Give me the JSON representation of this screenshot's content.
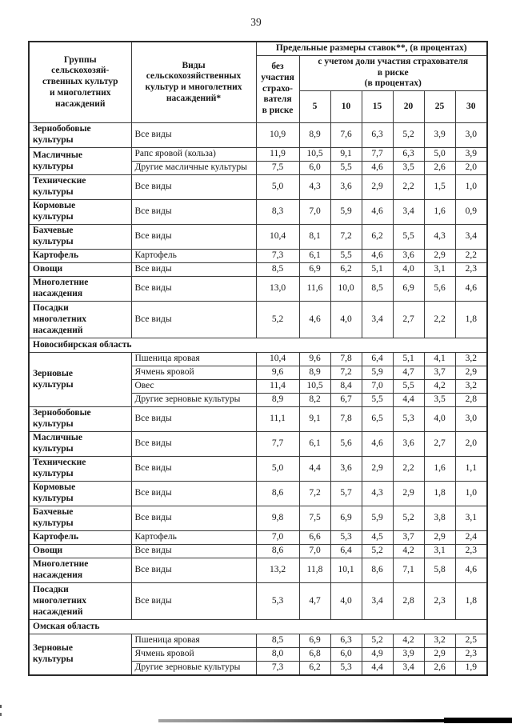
{
  "page": {
    "number": "39"
  },
  "table": {
    "header": {
      "groups": "Группы\nсельскохозяй-\nственных культур\nи многолетних\nнасаждений",
      "kinds": "Виды\nсельскохозяйственных\nкультур и многолетних\nнасаждений*",
      "rates_title": "Предельные размеры ставок**,  (в процентах)",
      "no_participation": "без\nучастия\nстрахо-\nвателя\nв риске",
      "with_participation": "с учетом доли участия страхователя\nв риске\n(в процентах)",
      "percentages": [
        "5",
        "10",
        "15",
        "20",
        "25",
        "30"
      ]
    },
    "sections": [
      {
        "region": null,
        "groups": [
          {
            "name": "Зернобобовые\nкультуры",
            "rows": [
              {
                "kind": "Все виды",
                "values": [
                  "10,9",
                  "8,9",
                  "7,6",
                  "6,3",
                  "5,2",
                  "3,9",
                  "3,0"
                ]
              }
            ]
          },
          {
            "name": "Масличные\nкультуры",
            "rows": [
              {
                "kind": "Рапс яровой (кольза)",
                "values": [
                  "11,9",
                  "10,5",
                  "9,1",
                  "7,7",
                  "6,3",
                  "5,0",
                  "3,9"
                ]
              },
              {
                "kind": "Другие масличные культуры",
                "values": [
                  "7,5",
                  "6,0",
                  "5,5",
                  "4,6",
                  "3,5",
                  "2,6",
                  "2,0"
                ]
              }
            ]
          },
          {
            "name": "Технические\nкультуры",
            "rows": [
              {
                "kind": "Все виды",
                "values": [
                  "5,0",
                  "4,3",
                  "3,6",
                  "2,9",
                  "2,2",
                  "1,5",
                  "1,0"
                ]
              }
            ]
          },
          {
            "name": "Кормовые\nкультуры",
            "rows": [
              {
                "kind": "Все виды",
                "values": [
                  "8,3",
                  "7,0",
                  "5,9",
                  "4,6",
                  "3,4",
                  "1,6",
                  "0,9"
                ]
              }
            ]
          },
          {
            "name": "Бахчевые\nкультуры",
            "rows": [
              {
                "kind": "Все виды",
                "values": [
                  "10,4",
                  "8,1",
                  "7,2",
                  "6,2",
                  "5,5",
                  "4,3",
                  "3,4"
                ]
              }
            ]
          },
          {
            "name": "Картофель",
            "rows": [
              {
                "kind": "Картофель",
                "values": [
                  "7,3",
                  "6,1",
                  "5,5",
                  "4,6",
                  "3,6",
                  "2,9",
                  "2,2"
                ]
              }
            ]
          },
          {
            "name": "Овощи",
            "rows": [
              {
                "kind": "Все виды",
                "values": [
                  "8,5",
                  "6,9",
                  "6,2",
                  "5,1",
                  "4,0",
                  "3,1",
                  "2,3"
                ]
              }
            ]
          },
          {
            "name": "Многолетние\nнасаждения",
            "rows": [
              {
                "kind": "Все виды",
                "values": [
                  "13,0",
                  "11,6",
                  "10,0",
                  "8,5",
                  "6,9",
                  "5,6",
                  "4,6"
                ]
              }
            ]
          },
          {
            "name": "Посадки\nмноголетних\nнасаждений",
            "rows": [
              {
                "kind": "Все виды",
                "values": [
                  "5,2",
                  "4,6",
                  "4,0",
                  "3,4",
                  "2,7",
                  "2,2",
                  "1,8"
                ]
              }
            ]
          }
        ]
      },
      {
        "region": "Новосибирская область",
        "groups": [
          {
            "name": "Зерновые\nкультуры",
            "rows": [
              {
                "kind": "Пшеница яровая",
                "values": [
                  "10,4",
                  "9,6",
                  "7,8",
                  "6,4",
                  "5,1",
                  "4,1",
                  "3,2"
                ]
              },
              {
                "kind": "Ячмень яровой",
                "values": [
                  "9,6",
                  "8,9",
                  "7,2",
                  "5,9",
                  "4,7",
                  "3,7",
                  "2,9"
                ]
              },
              {
                "kind": "Овес",
                "values": [
                  "11,4",
                  "10,5",
                  "8,4",
                  "7,0",
                  "5,5",
                  "4,2",
                  "3,2"
                ]
              },
              {
                "kind": "Другие зерновые культуры",
                "values": [
                  "8,9",
                  "8,2",
                  "6,7",
                  "5,5",
                  "4,4",
                  "3,5",
                  "2,8"
                ]
              }
            ]
          },
          {
            "name": "Зернобобовые\nкультуры",
            "rows": [
              {
                "kind": "Все виды",
                "values": [
                  "11,1",
                  "9,1",
                  "7,8",
                  "6,5",
                  "5,3",
                  "4,0",
                  "3,0"
                ]
              }
            ]
          },
          {
            "name": "Масличные\nкультуры",
            "rows": [
              {
                "kind": "Все виды",
                "values": [
                  "7,7",
                  "6,1",
                  "5,6",
                  "4,6",
                  "3,6",
                  "2,7",
                  "2,0"
                ]
              }
            ]
          },
          {
            "name": "Технические\nкультуры",
            "rows": [
              {
                "kind": "Все виды",
                "values": [
                  "5,0",
                  "4,4",
                  "3,6",
                  "2,9",
                  "2,2",
                  "1,6",
                  "1,1"
                ]
              }
            ]
          },
          {
            "name": "Кормовые\nкультуры",
            "rows": [
              {
                "kind": "Все виды",
                "values": [
                  "8,6",
                  "7,2",
                  "5,7",
                  "4,3",
                  "2,9",
                  "1,8",
                  "1,0"
                ]
              }
            ]
          },
          {
            "name": "Бахчевые\nкультуры",
            "rows": [
              {
                "kind": "Все виды",
                "values": [
                  "9,8",
                  "7,5",
                  "6,9",
                  "5,9",
                  "5,2",
                  "3,8",
                  "3,1"
                ]
              }
            ]
          },
          {
            "name": "Картофель",
            "rows": [
              {
                "kind": "Картофель",
                "values": [
                  "7,0",
                  "6,6",
                  "5,3",
                  "4,5",
                  "3,7",
                  "2,9",
                  "2,4"
                ]
              }
            ]
          },
          {
            "name": "Овощи",
            "rows": [
              {
                "kind": "Все виды",
                "values": [
                  "8,6",
                  "7,0",
                  "6,4",
                  "5,2",
                  "4,2",
                  "3,1",
                  "2,3"
                ]
              }
            ]
          },
          {
            "name": "Многолетние\nнасаждения",
            "rows": [
              {
                "kind": "Все виды",
                "values": [
                  "13,2",
                  "11,8",
                  "10,1",
                  "8,6",
                  "7,1",
                  "5,8",
                  "4,6"
                ]
              }
            ]
          },
          {
            "name": "Посадки\nмноголетних\nнасаждений",
            "rows": [
              {
                "kind": "Все виды",
                "values": [
                  "5,3",
                  "4,7",
                  "4,0",
                  "3,4",
                  "2,8",
                  "2,3",
                  "1,8"
                ]
              }
            ]
          }
        ]
      },
      {
        "region": "Омская область",
        "groups": [
          {
            "name": "Зерновые\nкультуры",
            "rows": [
              {
                "kind": "Пшеница яровая",
                "values": [
                  "8,5",
                  "6,9",
                  "6,3",
                  "5,2",
                  "4,2",
                  "3,2",
                  "2,5"
                ]
              },
              {
                "kind": "Ячмень яровой",
                "values": [
                  "8,0",
                  "6,8",
                  "6,0",
                  "4,9",
                  "3,9",
                  "2,9",
                  "2,3"
                ]
              },
              {
                "kind": "Другие зерновые культуры",
                "values": [
                  "7,3",
                  "6,2",
                  "5,3",
                  "4,4",
                  "3,4",
                  "2,6",
                  "1,9"
                ]
              }
            ]
          }
        ]
      }
    ]
  }
}
